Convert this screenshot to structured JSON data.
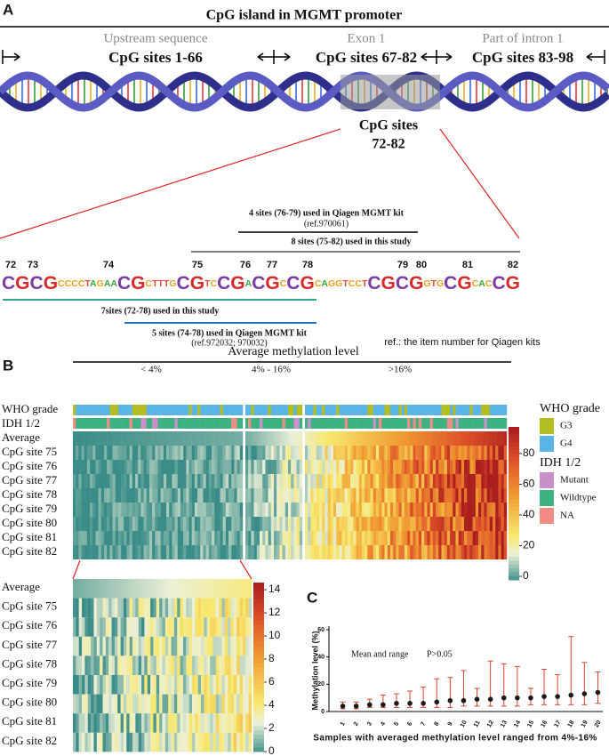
{
  "figure": {
    "panel_a": {
      "label": "A",
      "title": "CpG island in MGMT promoter",
      "regions": [
        {
          "name": "Upstream sequence",
          "sites": "CpG sites 1-66"
        },
        {
          "name": "Exon 1",
          "sites": "CpG sites 67-82"
        },
        {
          "name": "Part of intron 1",
          "sites": "CpG sites 83-98"
        }
      ],
      "zoom_label": [
        "CpG sites",
        "72-82"
      ],
      "site_numbers": [
        72,
        73,
        74,
        75,
        76,
        77,
        78,
        79,
        80,
        81,
        82
      ],
      "sequence": "CGCGCCCCTAGAACGCTTTGCGTCCGACGCCGCAGGTCCTCGCGGTGCGCACCG",
      "annotations": [
        "4 sites (76-79) used in Qiagen MGMT kit",
        "(ref.970061)",
        "8 sites (75-82) used in this study",
        "7sites (72-78) used in this study",
        "5 sites (74-78) used in Qiagen MGMT kit",
        "(ref.972032; 970032)"
      ],
      "note": "ref.: the item number for Qiagen kits"
    },
    "panel_b": {
      "label": "B",
      "title": "Average methylation level",
      "groups": [
        "< 4%",
        "4% - 16%",
        ">16%"
      ],
      "annotation_rows": [
        "WHO grade",
        "IDH 1/2"
      ],
      "rows": [
        "Average",
        "CpG site 75",
        "CpG site 76",
        "CpG site 77",
        "CpG site 78",
        "CpG site 79",
        "CpG site 80",
        "CpG site 81",
        "CpG site 82"
      ],
      "legend": [
        {
          "title": "WHO grade",
          "items": [
            {
              "name": "G3",
              "color": "#b3bd22"
            },
            {
              "name": "G4",
              "color": "#5ab4e5"
            }
          ]
        },
        {
          "title": "IDH 1/2",
          "items": [
            {
              "name": "Mutant",
              "color": "#c98fcb"
            },
            {
              "name": "Wildtype",
              "color": "#3db182"
            },
            {
              "name": "NA",
              "color": "#f08c84"
            }
          ]
        }
      ],
      "colorbar_ticks": [
        0,
        20,
        40,
        60,
        80
      ],
      "zoom_colorbar_ticks": [
        0,
        2,
        4,
        6,
        8,
        10,
        12,
        14
      ]
    }
  },
  "chart_data": {
    "type": "errorbar",
    "panel_label": "C",
    "annotations": [
      "Mean and range",
      "P>0.05"
    ],
    "y_label": "Methylation level (%)",
    "x_label": "Samples with averaged methylation level ranged from 4%-16%",
    "categories": [
      "1",
      "2",
      "3",
      "4",
      "5",
      "6",
      "7",
      "8",
      "9",
      "10",
      "11",
      "12",
      "13",
      "14",
      "15",
      "16",
      "17",
      "18",
      "19",
      "20"
    ],
    "values": [
      4,
      4,
      5,
      5,
      6,
      6,
      6,
      7,
      8,
      8,
      9,
      9,
      10,
      10,
      10,
      11,
      11,
      12,
      13,
      14
    ],
    "min": [
      2,
      2,
      3,
      3,
      3,
      3,
      3,
      3,
      3,
      4,
      4,
      4,
      4,
      4,
      5,
      5,
      5,
      5,
      5,
      6
    ],
    "max": [
      7,
      7,
      9,
      12,
      13,
      15,
      18,
      24,
      25,
      30,
      17,
      37,
      35,
      33,
      17,
      31,
      27,
      55,
      36,
      29
    ],
    "ylim": [
      0,
      60
    ],
    "yticks": [
      0,
      20,
      40,
      60
    ],
    "color": "#d8432c",
    "marker_color": "#1a1a1a"
  }
}
